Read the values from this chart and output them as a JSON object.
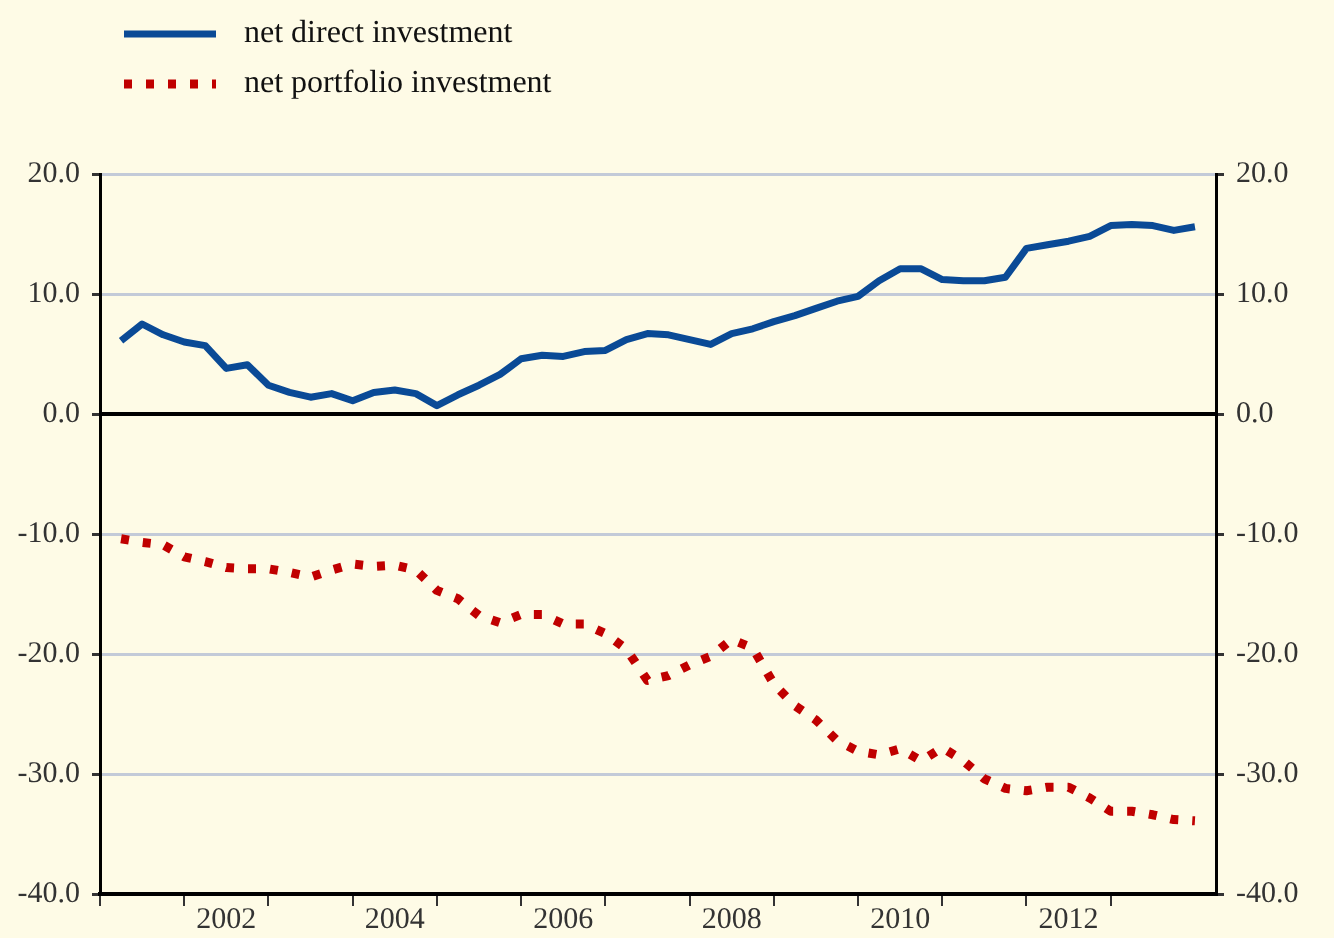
{
  "chart_data": {
    "type": "line",
    "x": [
      2001.25,
      2001.5,
      2001.75,
      2002,
      2002.25,
      2002.5,
      2002.75,
      2003,
      2003.25,
      2003.5,
      2003.75,
      2004,
      2004.25,
      2004.5,
      2004.75,
      2005,
      2005.25,
      2005.5,
      2005.75,
      2006,
      2006.25,
      2006.5,
      2006.75,
      2007,
      2007.25,
      2007.5,
      2007.75,
      2008,
      2008.25,
      2008.5,
      2008.75,
      2009,
      2009.25,
      2009.5,
      2009.75,
      2010,
      2010.25,
      2010.5,
      2010.75,
      2011,
      2011.25,
      2011.5,
      2011.75,
      2012,
      2012.25,
      2012.5,
      2012.75,
      2013,
      2013.25,
      2013.5,
      2013.75,
      2014
    ],
    "series": [
      {
        "name": "net direct investment",
        "color": "#0a4a96",
        "line_style": "solid",
        "values": [
          6.1,
          7.5,
          6.6,
          6.0,
          5.7,
          3.8,
          4.1,
          2.4,
          1.8,
          1.4,
          1.7,
          1.1,
          1.8,
          2.0,
          1.7,
          0.7,
          1.6,
          2.4,
          3.3,
          4.6,
          4.9,
          4.8,
          5.2,
          5.3,
          6.2,
          6.7,
          6.6,
          6.2,
          5.8,
          6.7,
          7.1,
          7.7,
          8.2,
          8.8,
          9.4,
          9.8,
          11.1,
          12.1,
          12.1,
          11.2,
          11.1,
          11.1,
          11.4,
          13.8,
          14.1,
          14.4,
          14.8,
          15.7,
          15.8,
          15.7,
          15.3,
          15.6
        ]
      },
      {
        "name": "net portfolio investment",
        "color": "#c00000",
        "line_style": "dotted",
        "values": [
          -10.4,
          -10.7,
          -10.9,
          -11.9,
          -12.3,
          -12.8,
          -12.9,
          -12.9,
          -13.2,
          -13.6,
          -13.0,
          -12.5,
          -12.7,
          -12.6,
          -13.0,
          -14.7,
          -15.4,
          -16.8,
          -17.4,
          -16.7,
          -16.7,
          -17.5,
          -17.5,
          -18.3,
          -19.6,
          -22.2,
          -21.8,
          -20.9,
          -20.2,
          -18.8,
          -19.5,
          -22.5,
          -24.3,
          -25.5,
          -27.2,
          -28.1,
          -28.4,
          -27.9,
          -28.9,
          -27.8,
          -28.9,
          -30.4,
          -31.2,
          -31.4,
          -31.1,
          -31.1,
          -32.0,
          -33.1,
          -33.1,
          -33.4,
          -33.8,
          -33.9
        ]
      }
    ],
    "xlim": [
      2001,
      2014.25
    ],
    "xticks": [
      {
        "value": 2001,
        "label": null
      },
      {
        "value": 2002,
        "label": null
      },
      {
        "value": 2002.5,
        "label": "2002"
      },
      {
        "value": 2003,
        "label": null
      },
      {
        "value": 2004,
        "label": null
      },
      {
        "value": 2004.5,
        "label": "2004"
      },
      {
        "value": 2005,
        "label": null
      },
      {
        "value": 2006,
        "label": null
      },
      {
        "value": 2006.5,
        "label": "2006"
      },
      {
        "value": 2007,
        "label": null
      },
      {
        "value": 2008,
        "label": null
      },
      {
        "value": 2008.5,
        "label": "2008"
      },
      {
        "value": 2009,
        "label": null
      },
      {
        "value": 2010,
        "label": null
      },
      {
        "value": 2010.5,
        "label": "2010"
      },
      {
        "value": 2011,
        "label": null
      },
      {
        "value": 2012,
        "label": null
      },
      {
        "value": 2012.5,
        "label": "2012"
      },
      {
        "value": 2013,
        "label": null
      }
    ],
    "ylim": [
      -40,
      20
    ],
    "yticks": [
      {
        "value": -40,
        "label": "-40.0"
      },
      {
        "value": -30,
        "label": "-30.0"
      },
      {
        "value": -20,
        "label": "-20.0"
      },
      {
        "value": -10,
        "label": "-10.0"
      },
      {
        "value": 0,
        "label": "0.0"
      },
      {
        "value": 10,
        "label": "10.0"
      },
      {
        "value": 20,
        "label": "20.0"
      }
    ],
    "y2lim": [
      -40,
      20
    ],
    "y2ticks": [
      {
        "value": -40,
        "label": "-40.0"
      },
      {
        "value": -30,
        "label": "-30.0"
      },
      {
        "value": -20,
        "label": "-20.0"
      },
      {
        "value": -10,
        "label": "-10.0"
      },
      {
        "value": 0,
        "label": "0.0"
      },
      {
        "value": 10,
        "label": "10.0"
      },
      {
        "value": 20,
        "label": "20.0"
      }
    ],
    "ref_lines": [
      {
        "axis": "y",
        "value": 0,
        "color": "#000000"
      }
    ],
    "grid": "y",
    "legend": "top left",
    "marker": "none"
  }
}
